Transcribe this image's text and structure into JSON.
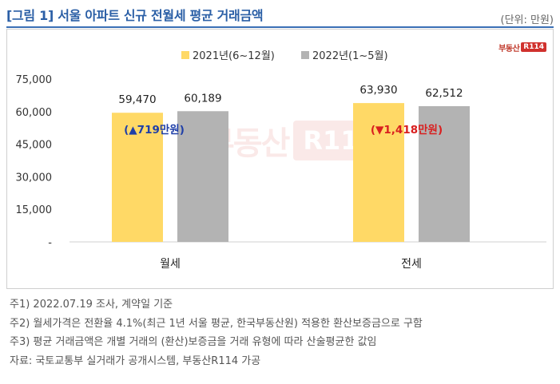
{
  "title": "[그림 1] 서울 아파트 신규 전월세 평균 거래금액",
  "unit": "(단위: 만원)",
  "logo": {
    "text": "부동산",
    "badge": "R114",
    "icon": "r114-logo-icon"
  },
  "watermark": {
    "text": "부동산",
    "badge": "R114"
  },
  "colors": {
    "series2021": "#ffd966",
    "series2022": "#b3b3b3",
    "up": "#1f3fa8",
    "down": "#d91f1f",
    "title": "#2b5fa6"
  },
  "chart_data": {
    "type": "bar",
    "categories": [
      "월세",
      "전세"
    ],
    "series": [
      {
        "name": "2021년(6~12월)",
        "values": [
          59470,
          63930
        ]
      },
      {
        "name": "2022년(1~5월)",
        "values": [
          60189,
          62512
        ]
      }
    ],
    "value_labels": [
      [
        "59,470",
        "63,930"
      ],
      [
        "60,189",
        "62,512"
      ]
    ],
    "ylim": [
      0,
      75000
    ],
    "yticks": [
      0,
      15000,
      30000,
      45000,
      60000,
      75000
    ],
    "ytick_labels": [
      "-",
      "15,000",
      "30,000",
      "45,000",
      "60,000",
      "75,000"
    ],
    "legend_position": "top",
    "grid": false,
    "annotations": [
      {
        "category": "월세",
        "text": "(▲719만원)",
        "color": "#1f3fa8"
      },
      {
        "category": "전세",
        "text": "(▼1,418만원)",
        "color": "#d91f1f"
      }
    ]
  },
  "notes": [
    "주1) 2022.07.19 조사, 계약일 기준",
    "주2) 월세가격은 전환율 4.1%(최근 1년 서울 평균, 한국부동산원) 적용한 환산보증금으로 구함",
    "주3) 평균 거래금액은 개별 거래의 (환산)보증금을 거래 유형에 따라 산술평균한 값임",
    "자료: 국토교통부 실거래가 공개시스템, 부동산R114 가공"
  ]
}
